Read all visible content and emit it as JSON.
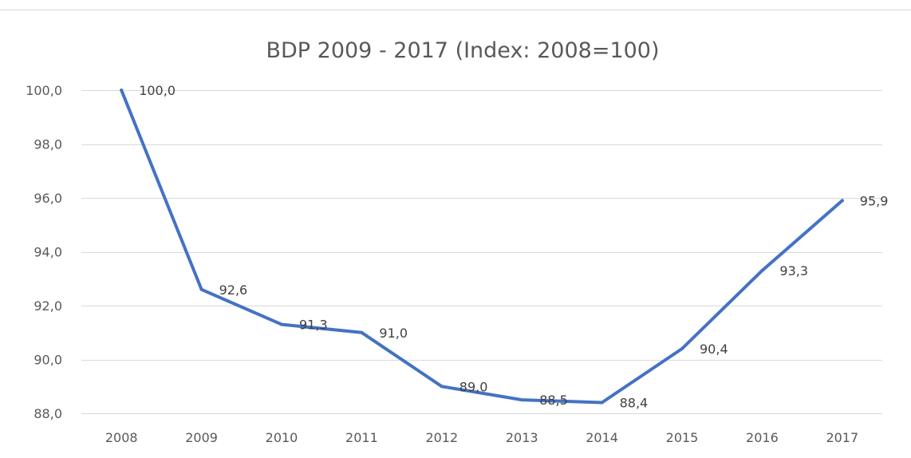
{
  "chart_data": {
    "type": "line",
    "title": "BDP 2009 - 2017 (Index: 2008=100)",
    "xlabel": "",
    "ylabel": "",
    "categories": [
      "2008",
      "2009",
      "2010",
      "2011",
      "2012",
      "2013",
      "2014",
      "2015",
      "2016",
      "2017"
    ],
    "series": [
      {
        "values": [
          100.0,
          92.6,
          91.3,
          91.0,
          89.0,
          88.5,
          88.4,
          90.4,
          93.3,
          95.9
        ],
        "data_labels": [
          "100,0",
          "92,6",
          "91,3",
          "91,0",
          "89,0",
          "88,5",
          "88,4",
          "90,4",
          "93,3",
          "95,9"
        ],
        "color": "#4472c4"
      }
    ],
    "ylim": [
      88,
      100
    ],
    "yticks": [
      88,
      90,
      92,
      94,
      96,
      98,
      100
    ],
    "ytick_labels": [
      "88,0",
      "90,0",
      "92,0",
      "94,0",
      "96,0",
      "98,0",
      "100,0"
    ],
    "grid": true,
    "legend": "none"
  }
}
